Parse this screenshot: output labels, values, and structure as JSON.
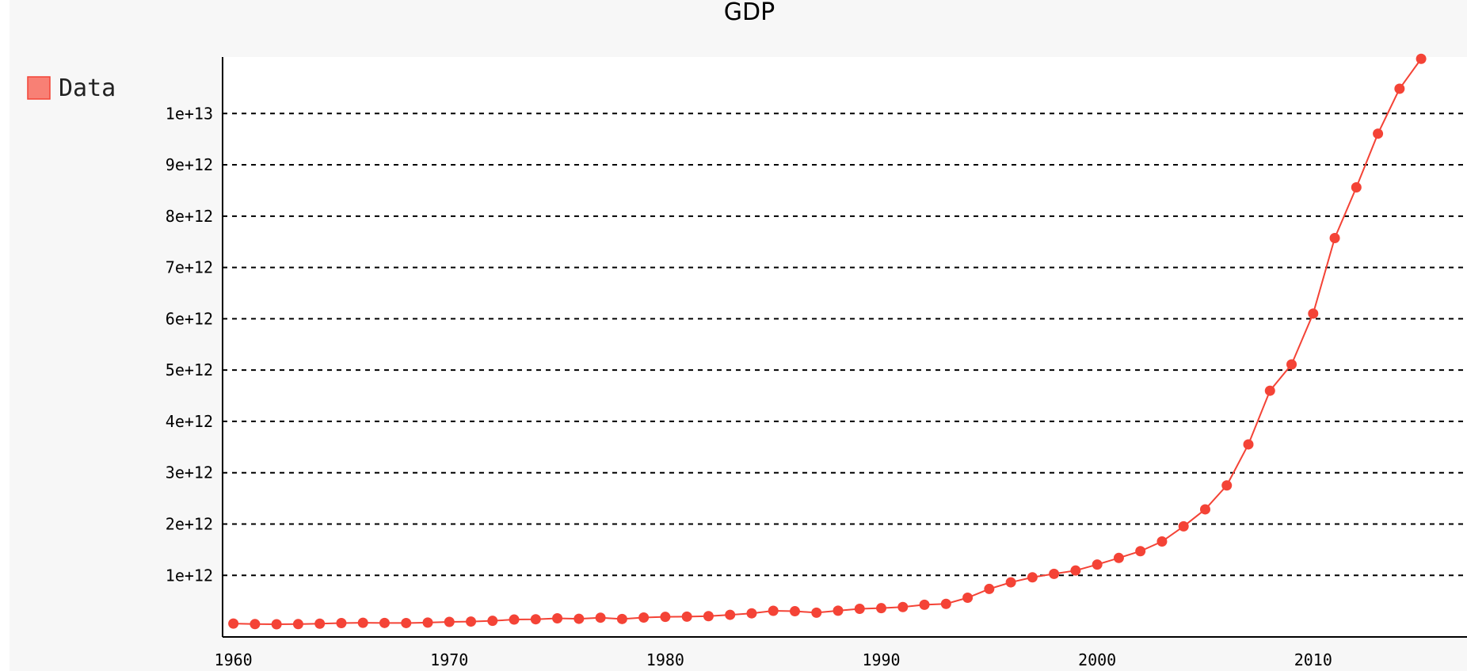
{
  "chart_data": {
    "type": "line",
    "title": "GDP",
    "xlabel": "",
    "ylabel": "",
    "legend": {
      "placement": "top-left",
      "entries": [
        "Data"
      ]
    },
    "grid": {
      "horizontal": true,
      "vertical": false,
      "style": "dashed"
    },
    "xlim": [
      1959.5,
      2016.5
    ],
    "ylim": [
      -200000000000,
      11100000000000
    ],
    "x_ticks": [
      1960,
      1970,
      1980,
      1990,
      2000,
      2010
    ],
    "x_tick_labels": [
      "1960",
      "1970",
      "1980",
      "1990",
      "2000",
      "2010"
    ],
    "y_ticks": [
      1000000000000,
      2000000000000,
      3000000000000,
      4000000000000,
      5000000000000,
      6000000000000,
      7000000000000,
      8000000000000,
      9000000000000,
      10000000000000
    ],
    "y_tick_labels": [
      "1e+12",
      "2e+12",
      "3e+12",
      "4e+12",
      "5e+12",
      "6e+12",
      "7e+12",
      "8e+12",
      "9e+12",
      "1e+13"
    ],
    "series": [
      {
        "name": "Data",
        "color": "#f44336",
        "x": [
          1960,
          1961,
          1962,
          1963,
          1964,
          1965,
          1966,
          1967,
          1968,
          1969,
          1970,
          1971,
          1972,
          1973,
          1974,
          1975,
          1976,
          1977,
          1978,
          1979,
          1980,
          1981,
          1982,
          1983,
          1984,
          1985,
          1986,
          1987,
          1988,
          1989,
          1990,
          1991,
          1992,
          1993,
          1994,
          1995,
          1996,
          1997,
          1998,
          1999,
          2000,
          2001,
          2002,
          2003,
          2004,
          2005,
          2006,
          2007,
          2008,
          2009,
          2010,
          2011,
          2012,
          2013,
          2014,
          2015
        ],
        "values": [
          60000000000,
          50000000000,
          47000000000,
          50000000000,
          59000000000,
          70000000000,
          76000000000,
          73000000000,
          71000000000,
          80000000000,
          93000000000,
          100000000000,
          114000000000,
          139000000000,
          144000000000,
          163000000000,
          154000000000,
          175000000000,
          150000000000,
          178000000000,
          191000000000,
          196000000000,
          205000000000,
          231000000000,
          260000000000,
          309000000000,
          301000000000,
          273000000000,
          311000000000,
          348000000000,
          361000000000,
          383000000000,
          427000000000,
          445000000000,
          564000000000,
          735000000000,
          864000000000,
          962000000000,
          1029000000000,
          1094000000000,
          1211000000000,
          1339000000000,
          1471000000000,
          1660000000000,
          1955000000000,
          2286000000000,
          2752000000000,
          3552000000000,
          4598000000000,
          5110000000000,
          6101000000000,
          7573000000000,
          8561000000000,
          9607000000000,
          10482000000000,
          11065000000000
        ]
      }
    ]
  }
}
